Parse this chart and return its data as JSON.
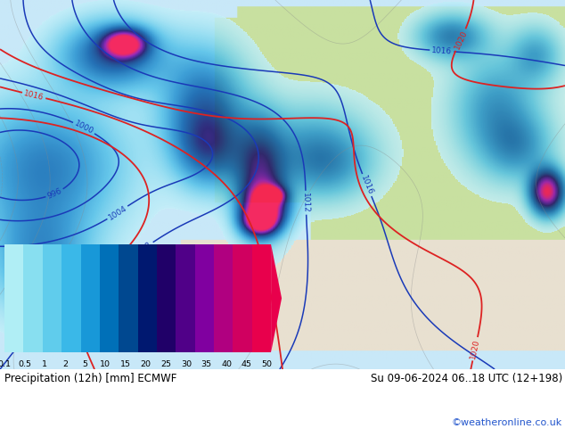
{
  "title_left": "Precipitation (12h) [mm] ECMWF",
  "title_right": "Su 09-06-2024 06..18 UTC (12+198)",
  "credit": "©weatheronline.co.uk",
  "colorbar_labels": [
    "0.1",
    "0.5",
    "1",
    "2",
    "5",
    "10",
    "15",
    "20",
    "25",
    "30",
    "35",
    "40",
    "45",
    "50"
  ],
  "colorbar_colors": [
    "#b0eef5",
    "#88dff0",
    "#60ccec",
    "#3ab8e8",
    "#1898d8",
    "#0070b8",
    "#004890",
    "#001870",
    "#200068",
    "#500088",
    "#8000a0",
    "#b00080",
    "#d00060",
    "#e8004c"
  ],
  "bg_color": "#ffffff",
  "fig_width": 6.34,
  "fig_height": 4.9,
  "ocean_color": "#c8e8f8",
  "land_color_green": "#c8e0a0",
  "land_color_light": "#e8e0d0",
  "precip_colors": [
    [
      0.0,
      "#ffffff"
    ],
    [
      0.02,
      "#c0eef8"
    ],
    [
      0.08,
      "#88daf0"
    ],
    [
      0.15,
      "#50c0e8"
    ],
    [
      0.25,
      "#2090d0"
    ],
    [
      0.38,
      "#0058a8"
    ],
    [
      0.5,
      "#003080"
    ],
    [
      0.6,
      "#100060"
    ],
    [
      0.7,
      "#480090"
    ],
    [
      0.8,
      "#9000a8"
    ],
    [
      0.88,
      "#c80078"
    ],
    [
      0.94,
      "#e80050"
    ],
    [
      1.0,
      "#ff0040"
    ]
  ]
}
